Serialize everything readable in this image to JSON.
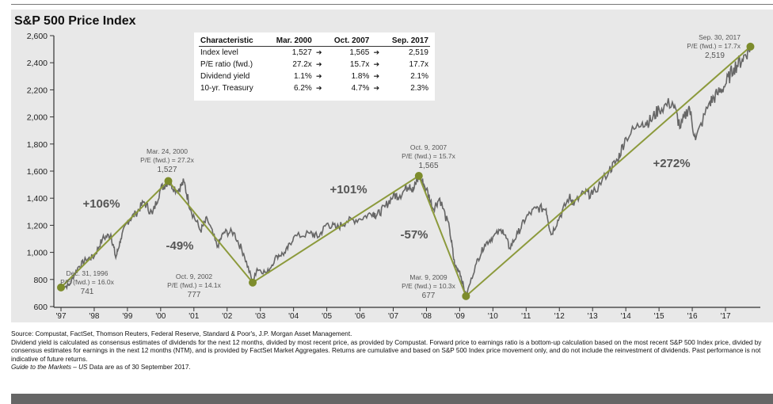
{
  "chart_data": {
    "type": "line",
    "title": "S&P 500 Price Index",
    "xlabel": "",
    "ylabel": "",
    "ylim": [
      600,
      2600
    ],
    "xlim": [
      1997,
      2018
    ],
    "yticks": [
      600,
      800,
      1000,
      1200,
      1400,
      1600,
      1800,
      2000,
      2200,
      2400,
      2600
    ],
    "ytick_labels": [
      "600",
      "800",
      "1,000",
      "1,200",
      "1,400",
      "1,600",
      "1,800",
      "2,000",
      "2,200",
      "2,400",
      "2,600"
    ],
    "xtick_labels": [
      "'97",
      "'98",
      "'99",
      "'00",
      "'01",
      "'02",
      "'03",
      "'04",
      "'05",
      "'06",
      "'07",
      "'08",
      "'09",
      "'10",
      "'11",
      "'12",
      "'13",
      "'14",
      "'15",
      "'16",
      "'17"
    ],
    "series": [
      {
        "name": "S&P 500",
        "x": [
          1997.0,
          1997.25,
          1997.5,
          1997.75,
          1998.0,
          1998.25,
          1998.5,
          1998.65,
          1998.8,
          1999.0,
          1999.25,
          1999.5,
          1999.75,
          2000.0,
          2000.23,
          2000.5,
          2000.7,
          2000.9,
          2001.2,
          2001.4,
          2001.7,
          2001.9,
          2002.2,
          2002.5,
          2002.77,
          2002.9,
          2003.2,
          2003.5,
          2003.75,
          2004.0,
          2004.5,
          2004.75,
          2005.0,
          2005.3,
          2005.6,
          2006.0,
          2006.4,
          2006.5,
          2006.75,
          2007.0,
          2007.2,
          2007.5,
          2007.6,
          2007.77,
          2008.0,
          2008.2,
          2008.4,
          2008.7,
          2008.85,
          2009.0,
          2009.19,
          2009.5,
          2009.75,
          2010.0,
          2010.3,
          2010.5,
          2010.75,
          2011.0,
          2011.3,
          2011.6,
          2011.75,
          2012.0,
          2012.3,
          2012.45,
          2012.75,
          2013.0,
          2013.5,
          2013.75,
          2014.0,
          2014.5,
          2014.75,
          2015.0,
          2015.4,
          2015.65,
          2015.9,
          2016.1,
          2016.5,
          2016.75,
          2017.0,
          2017.25,
          2017.5,
          2017.75
        ],
        "values": [
          741,
          757,
          885,
          947,
          970,
          1101,
          1133,
          960,
          1100,
          1229,
          1286,
          1373,
          1282,
          1469,
          1527,
          1455,
          1520,
          1320,
          1160,
          1250,
          1040,
          1148,
          1147,
          990,
          777,
          880,
          848,
          975,
          996,
          1112,
          1141,
          1115,
          1212,
          1181,
          1229,
          1248,
          1295,
          1270,
          1336,
          1418,
          1421,
          1503,
          1455,
          1565,
          1468,
          1323,
          1400,
          1166,
          903,
          860,
          677,
          919,
          1057,
          1115,
          1169,
          1031,
          1141,
          1258,
          1326,
          1321,
          1131,
          1258,
          1408,
          1362,
          1441,
          1426,
          1606,
          1682,
          1848,
          1960,
          1972,
          2059,
          2110,
          1920,
          2080,
          1829,
          2098,
          2168,
          2239,
          2363,
          2423,
          2519
        ]
      }
    ],
    "trend_points": [
      {
        "date": "Dec. 31, 1996",
        "pe": "P/E (fwd.) = 16.0x",
        "level": "741",
        "x": 1997.0,
        "y": 741
      },
      {
        "date": "Mar. 24, 2000",
        "pe": "P/E (fwd.) = 27.2x",
        "level": "1,527",
        "x": 2000.23,
        "y": 1527
      },
      {
        "date": "Oct. 9, 2002",
        "pe": "P/E (fwd.) = 14.1x",
        "level": "777",
        "x": 2002.77,
        "y": 777
      },
      {
        "date": "Oct. 9, 2007",
        "pe": "P/E (fwd.) = 15.7x",
        "level": "1,565",
        "x": 2007.77,
        "y": 1565
      },
      {
        "date": "Mar. 9, 2009",
        "pe": "P/E (fwd.) = 10.3x",
        "level": "677",
        "x": 2009.19,
        "y": 677
      },
      {
        "date": "Sep. 30, 2017",
        "pe": "P/E (fwd.) = 17.7x",
        "level": "2,519",
        "x": 2017.75,
        "y": 2519
      }
    ],
    "annotations": [
      "+106%",
      "-49%",
      "+101%",
      "-57%",
      "+272%"
    ],
    "colors": {
      "price": "#666666",
      "trend": "#8c9a3c",
      "dot": "#7d8c2c"
    }
  },
  "table": {
    "headers": [
      "Characteristic",
      "Mar. 2000",
      "Oct. 2007",
      "Sep. 2017"
    ],
    "rows": [
      [
        "Index level",
        "1,527",
        "1,565",
        "2,519"
      ],
      [
        "P/E ratio (fwd.)",
        "27.2x",
        "15.7x",
        "17.7x"
      ],
      [
        "Dividend yield",
        "1.1%",
        "1.8%",
        "2.1%"
      ],
      [
        "10-yr. Treasury",
        "6.2%",
        "4.7%",
        "2.3%"
      ]
    ],
    "arrow": "➔"
  },
  "footer": {
    "source": "Source: Compustat, FactSet, Thomson Reuters, Federal Reserve, Standard & Poor's, J.P. Morgan Asset Management.",
    "note": "Dividend yield is calculated as consensus estimates of dividends for the next 12 months, divided by most recent price, as provided by Compustat. Forward price to earnings ratio is a bottom-up calculation based on the most recent S&P 500 Index price, divided by consensus estimates for earnings in the next 12 months (NTM), and is provided by FactSet Market Aggregates. Returns are cumulative and based on S&P 500 Index price movement only, and do not include the reinvestment of dividends. Past performance is not indicative of future returns.",
    "guide_italic": "Guide to the Markets – US",
    "guide_rest": " Data are as of 30 September 2017."
  }
}
